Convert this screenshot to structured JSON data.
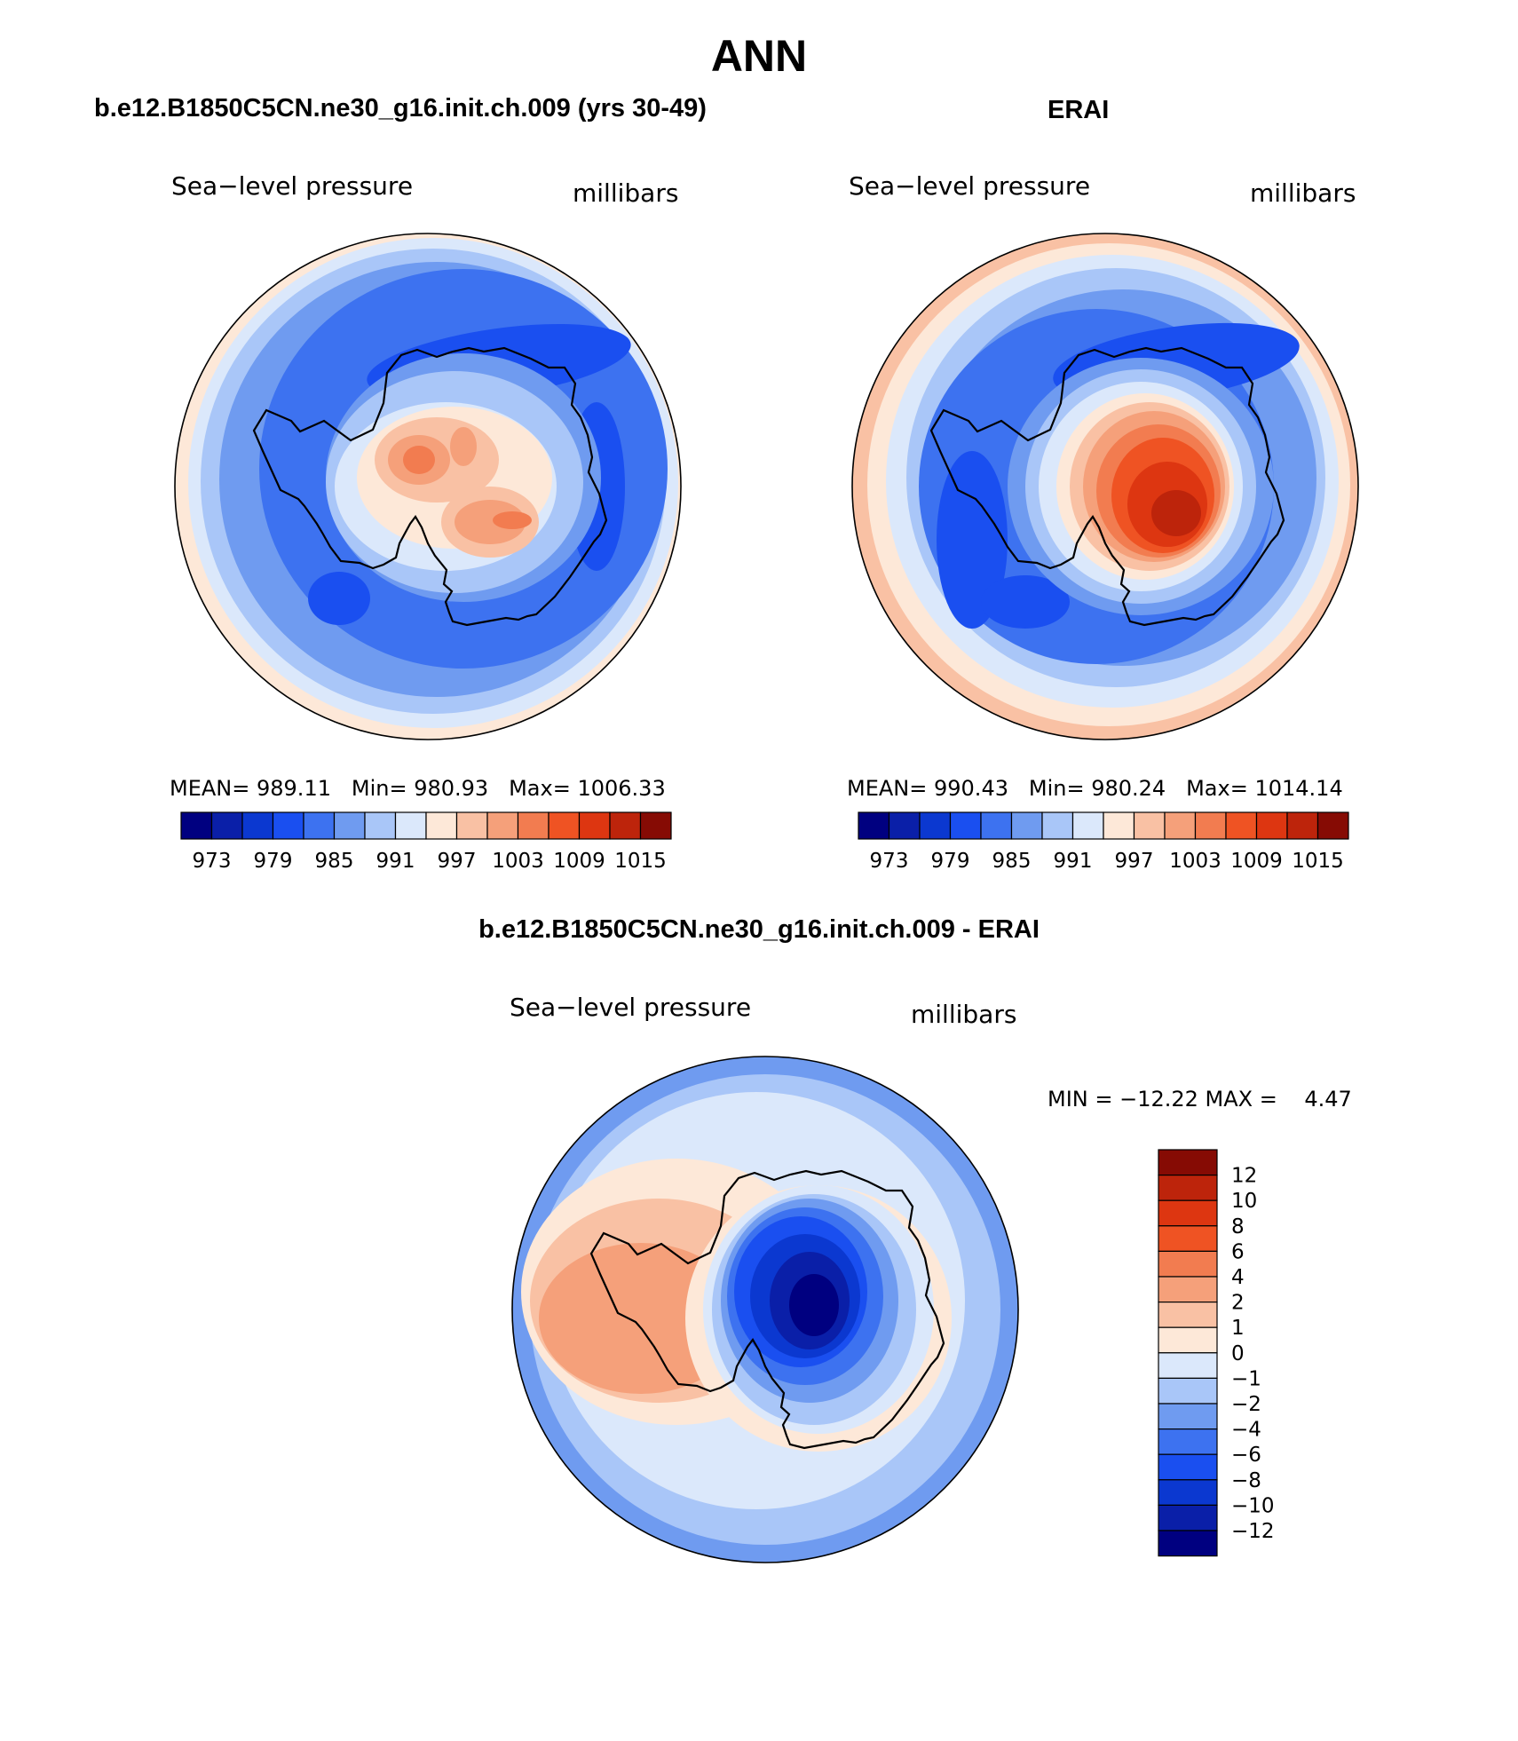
{
  "page_title": "ANN",
  "colors": {
    "slp_fill": [
      "#000080",
      "#0a1fa8",
      "#0b38d0",
      "#1a4ff0",
      "#3d72f0",
      "#6f9bf0",
      "#a9c6f8",
      "#dbe8fb",
      "#fde8d8",
      "#f9c1a4",
      "#f5a07a",
      "#f27c50",
      "#ef5323",
      "#dd3611",
      "#bd240b",
      "#860b04"
    ],
    "diff_fill": [
      "#000080",
      "#0a1fa8",
      "#0b38d0",
      "#1a4ff0",
      "#3d72f0",
      "#6f9bf0",
      "#a9c6f8",
      "#dbe8fb",
      "#fde8d8",
      "#f9c1a4",
      "#f5a07a",
      "#f27c50",
      "#ef5323",
      "#dd3611",
      "#bd240b",
      "#860b04"
    ]
  },
  "chart_data": [
    {
      "id": "model",
      "type": "polar contour map",
      "title": "b.e12.B1850C5CN.ne30_g16.init.ch.009 (yrs 30-49)",
      "left_label": "Sea−level pressure",
      "right_label": "millibars",
      "stats": {
        "mean_label": "MEAN=",
        "mean": "989.11",
        "min_label": "Min=",
        "min": "980.93",
        "max_label": "Max=",
        "max": "1006.33"
      },
      "contour_levels": [
        973,
        976,
        979,
        982,
        985,
        988,
        991,
        994,
        997,
        1000,
        1003,
        1006,
        1009,
        1012,
        1015
      ],
      "colorbar_ticks": [
        "973",
        "979",
        "985",
        "991",
        "997",
        "1003",
        "1009",
        "1015"
      ],
      "colorbar_orientation": "horizontal"
    },
    {
      "id": "obs",
      "type": "polar contour map",
      "title": "ERAI",
      "left_label": "Sea−level pressure",
      "right_label": "millibars",
      "stats": {
        "mean_label": "MEAN=",
        "mean": "990.43",
        "min_label": "Min=",
        "min": "980.24",
        "max_label": "Max=",
        "max": "1014.14"
      },
      "contour_levels": [
        973,
        976,
        979,
        982,
        985,
        988,
        991,
        994,
        997,
        1000,
        1003,
        1006,
        1009,
        1012,
        1015
      ],
      "colorbar_ticks": [
        "973",
        "979",
        "985",
        "991",
        "997",
        "1003",
        "1009",
        "1015"
      ],
      "colorbar_orientation": "horizontal"
    },
    {
      "id": "diff",
      "type": "polar contour map",
      "title": "b.e12.B1850C5CN.ne30_g16.init.ch.009 - ERAI",
      "left_label": "Sea−level pressure",
      "right_label": "millibars",
      "minmax_text": "MIN = −12.22 MAX =    4.47",
      "min": -12.22,
      "max": 4.47,
      "contour_levels": [
        -12,
        -10,
        -8,
        -6,
        -4,
        -2,
        -1,
        0,
        1,
        2,
        4,
        6,
        8,
        10,
        12
      ],
      "colorbar_ticks": [
        "12",
        "10",
        "8",
        "6",
        "4",
        "2",
        "1",
        "0",
        "−1",
        "−2",
        "−4",
        "−6",
        "−8",
        "−10",
        "−12"
      ],
      "colorbar_orientation": "vertical"
    }
  ]
}
